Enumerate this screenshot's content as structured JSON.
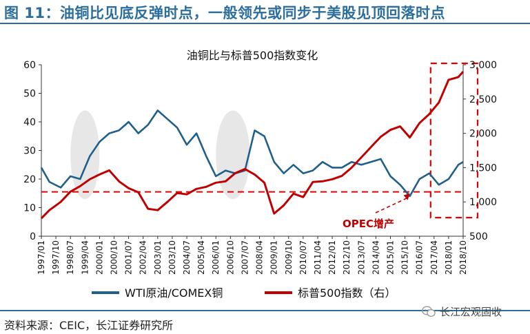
{
  "header": {
    "figure_title": "图 11：油铜比见底反弹时点，一般领先或同步于美股见顶回落时点"
  },
  "footer": {
    "source": "资料来源：CEIC，长江证券研究所",
    "watermark": "长江宏观固收"
  },
  "chart_data": {
    "type": "line",
    "title": "油铜比与标普500指数变化",
    "x": [
      "1997/01",
      "1997/06",
      "1998/01",
      "1998/07",
      "1999/01",
      "1999/07",
      "2000/01",
      "2000/07",
      "2001/01",
      "2001/07",
      "2002/01",
      "2002/07",
      "2003/01",
      "2003/07",
      "2004/01",
      "2004/07",
      "2005/01",
      "2005/07",
      "2006/01",
      "2006/07",
      "2007/01",
      "2007/07",
      "2008/01",
      "2008/07",
      "2009/01",
      "2009/07",
      "2010/01",
      "2010/07",
      "2011/01",
      "2011/07",
      "2012/01",
      "2012/07",
      "2013/01",
      "2013/07",
      "2014/01",
      "2014/07",
      "2015/01",
      "2015/07",
      "2016/01",
      "2016/07",
      "2017/01",
      "2017/07",
      "2018/01",
      "2018/07",
      "2018/10"
    ],
    "xtick_labels": [
      "1997/01",
      "1997/10",
      "1998/07",
      "1999/04",
      "2000/01",
      "2000/10",
      "2001/07",
      "2002/04",
      "2003/01",
      "2003/10",
      "2004/07",
      "2005/04",
      "2006/01",
      "2006/10",
      "2007/07",
      "2008/04",
      "2009/01",
      "2009/10",
      "2010/07",
      "2011/04",
      "2012/01",
      "2012/10",
      "2013/07",
      "2014/04",
      "2015/01",
      "2015/10",
      "2016/07",
      "2017/04",
      "2018/01",
      "2018/10"
    ],
    "series": [
      {
        "name": "WTI原油/COMEX铜",
        "axis": "left",
        "color": "#1f5f8b",
        "values": [
          24,
          19,
          17,
          21,
          20,
          28,
          33,
          36,
          37,
          40,
          36,
          39,
          44,
          41,
          38,
          32,
          36,
          28,
          21,
          23,
          22,
          23,
          37,
          35,
          26,
          22,
          25,
          22,
          23,
          26,
          24,
          24,
          26,
          25,
          26,
          27,
          21,
          18,
          14,
          20,
          22,
          18,
          20,
          25,
          26
        ]
      },
      {
        "name": "标普500指数（右）",
        "axis": "right",
        "color": "#c00000",
        "values": [
          760,
          880,
          1000,
          1150,
          1230,
          1330,
          1400,
          1460,
          1300,
          1200,
          1140,
          900,
          880,
          1000,
          1130,
          1110,
          1190,
          1220,
          1280,
          1300,
          1420,
          1480,
          1400,
          1280,
          830,
          950,
          1120,
          1070,
          1290,
          1300,
          1330,
          1380,
          1500,
          1650,
          1800,
          1950,
          2050,
          2100,
          1940,
          2150,
          2280,
          2450,
          2780,
          2820,
          2900
        ]
      }
    ],
    "left_axis": {
      "ylim": [
        0,
        60
      ],
      "ticks": [
        0,
        10,
        20,
        30,
        40,
        50,
        60
      ]
    },
    "right_axis": {
      "ylim": [
        500,
        3000
      ],
      "ticks": [
        500,
        1000,
        1500,
        2000,
        2500,
        3000
      ],
      "tick_labels": [
        "500",
        "1,000",
        "1,500",
        "2,000",
        "2,500",
        "3,000"
      ]
    },
    "reference_line": {
      "axis": "left",
      "value": 15.5,
      "style": "dashed",
      "color": "#e00000"
    },
    "highlight_regions": [
      {
        "from": "1998/07",
        "to": "2000/01",
        "kind": "shaded-ellipse"
      },
      {
        "from": "2006/01",
        "to": "2007/10",
        "kind": "shaded-ellipse"
      },
      {
        "from": "2017/04",
        "to": "2018/10",
        "kind": "dashed-box",
        "color": "#e00000"
      }
    ],
    "annotation": {
      "text": "OPEC增产",
      "color": "#c00000",
      "points_to": "2016/01"
    },
    "legend_position": "bottom"
  }
}
